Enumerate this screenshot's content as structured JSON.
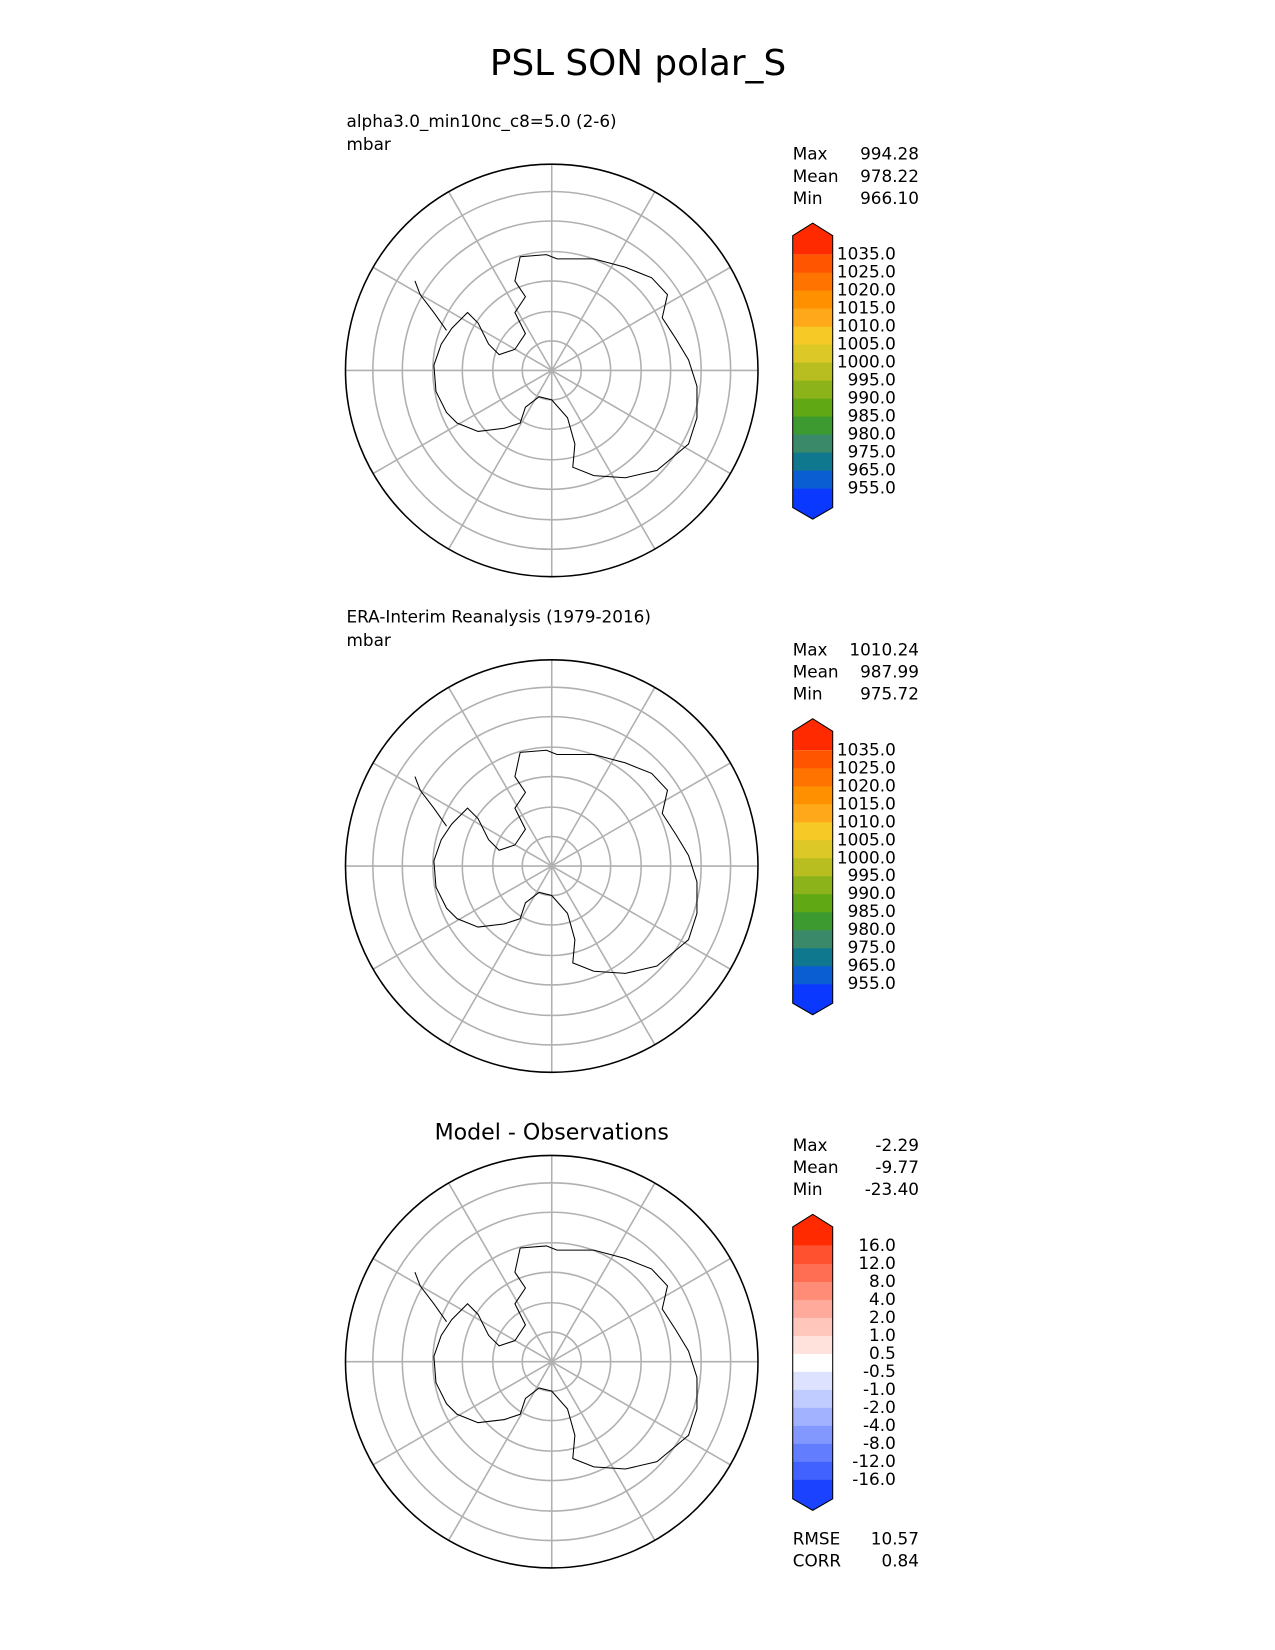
{
  "title": "PSL SON polar_S",
  "panels": [
    {
      "title": "alpha3.0_min10nc_c8=5.0 (2-6)",
      "units": "mbar",
      "stats": [
        {
          "label": "Max",
          "value": "994.28"
        },
        {
          "label": "Mean",
          "value": "978.22"
        },
        {
          "label": "Min",
          "value": "966.10"
        }
      ],
      "colorbar": {
        "labels": [
          "1035.0",
          "1025.0",
          "1020.0",
          "1015.0",
          "1010.0",
          "1005.0",
          "1000.0",
          "995.0",
          "990.0",
          "985.0",
          "980.0",
          "975.0",
          "965.0",
          "955.0"
        ],
        "colors": [
          "#ff2a00",
          "#ff5500",
          "#ff7300",
          "#ff9100",
          "#ffa91a",
          "#f7c926",
          "#dcc826",
          "#b8be20",
          "#8cb41a",
          "#60a814",
          "#3c9a30",
          "#3a8a6a",
          "#10788e",
          "#0a5ed2",
          "#0a38ff"
        ]
      }
    },
    {
      "title": "ERA-Interim Reanalysis (1979-2016)",
      "units": "mbar",
      "stats": [
        {
          "label": "Max",
          "value": "1010.24"
        },
        {
          "label": "Mean",
          "value": "987.99"
        },
        {
          "label": "Min",
          "value": "975.72"
        }
      ],
      "colorbar": {
        "labels": [
          "1035.0",
          "1025.0",
          "1020.0",
          "1015.0",
          "1010.0",
          "1005.0",
          "1000.0",
          "995.0",
          "990.0",
          "985.0",
          "980.0",
          "975.0",
          "965.0",
          "955.0"
        ],
        "colors": [
          "#ff2a00",
          "#ff5500",
          "#ff7300",
          "#ff9100",
          "#ffa91a",
          "#f7c926",
          "#dcc826",
          "#b8be20",
          "#8cb41a",
          "#60a814",
          "#3c9a30",
          "#3a8a6a",
          "#10788e",
          "#0a5ed2",
          "#0a38ff"
        ]
      }
    },
    {
      "title": "Model - Observations",
      "stats": [
        {
          "label": "Max",
          "value": "-2.29"
        },
        {
          "label": "Mean",
          "value": "-9.77"
        },
        {
          "label": "Min",
          "value": "-23.40"
        }
      ],
      "colorbar": {
        "labels": [
          "16.0",
          "12.0",
          "8.0",
          "4.0",
          "2.0",
          "1.0",
          "0.5",
          "-0.5",
          "-1.0",
          "-2.0",
          "-4.0",
          "-8.0",
          "-12.0",
          "-16.0"
        ],
        "colors": [
          "#ff2a00",
          "#ff5030",
          "#ff6e52",
          "#ff8c76",
          "#ffaa9a",
          "#ffc6bc",
          "#ffe2dc",
          "#ffffff",
          "#dde3ff",
          "#c0cbff",
          "#a2b2ff",
          "#8398ff",
          "#627eff",
          "#4262ff",
          "#1a42ff"
        ]
      },
      "metrics": [
        {
          "label": "RMSE",
          "value": "10.57"
        },
        {
          "label": "CORR",
          "value": "0.84"
        }
      ]
    }
  ]
}
